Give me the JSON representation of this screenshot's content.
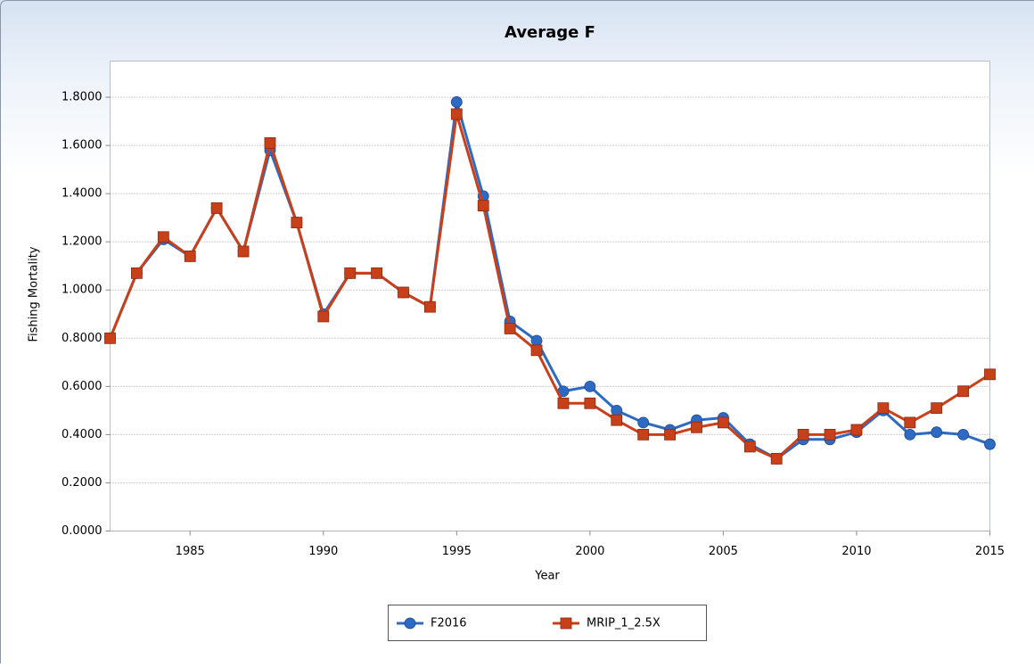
{
  "chart_data": {
    "type": "line",
    "title": "Average F",
    "x_label": "Year",
    "y_label": "Fishing Mortality",
    "x": [
      1982,
      1983,
      1984,
      1985,
      1986,
      1987,
      1988,
      1989,
      1990,
      1991,
      1992,
      1993,
      1994,
      1995,
      1996,
      1997,
      1998,
      1999,
      2000,
      2001,
      2002,
      2003,
      2004,
      2005,
      2006,
      2007,
      2008,
      2009,
      2010,
      2011,
      2012,
      2013,
      2014,
      2015
    ],
    "series": [
      {
        "name": "F2016",
        "color": "#2e6ac4",
        "marker": "circle",
        "values": [
          0.8,
          1.07,
          1.21,
          1.14,
          1.34,
          1.16,
          1.58,
          1.28,
          0.9,
          1.07,
          1.07,
          0.99,
          0.93,
          1.78,
          1.39,
          0.87,
          0.79,
          0.58,
          0.6,
          0.5,
          0.45,
          0.42,
          0.46,
          0.47,
          0.36,
          0.3,
          0.38,
          0.38,
          0.41,
          0.5,
          0.4,
          0.41,
          0.4,
          0.36
        ]
      },
      {
        "name": "MRIP_1_2.5X",
        "color": "#c8401a",
        "marker": "square",
        "values": [
          0.8,
          1.07,
          1.22,
          1.14,
          1.34,
          1.16,
          1.61,
          1.28,
          0.89,
          1.07,
          1.07,
          0.99,
          0.93,
          1.73,
          1.35,
          0.84,
          0.75,
          0.53,
          0.53,
          0.46,
          0.4,
          0.4,
          0.43,
          0.45,
          0.35,
          0.3,
          0.4,
          0.4,
          0.42,
          0.51,
          0.45,
          0.51,
          0.58,
          0.65
        ]
      }
    ],
    "xlim": [
      1982,
      2015
    ],
    "xticks": [
      1985,
      1990,
      1995,
      2000,
      2005,
      2010,
      2015
    ],
    "ylim": [
      0,
      1.95
    ],
    "yticks": [
      {
        "value": 0,
        "label": "0.0000"
      },
      {
        "value": 0.2,
        "label": "0.2000"
      },
      {
        "value": 0.4,
        "label": "0.4000"
      },
      {
        "value": 0.6,
        "label": "0.6000"
      },
      {
        "value": 0.8,
        "label": "0.8000"
      },
      {
        "value": 1.0,
        "label": "1.0000"
      },
      {
        "value": 1.2,
        "label": "1.2000"
      },
      {
        "value": 1.4,
        "label": "1.4000"
      },
      {
        "value": 1.6,
        "label": "1.6000"
      },
      {
        "value": 1.8,
        "label": "1.8000"
      }
    ],
    "grid": true,
    "legend": "bottom"
  }
}
